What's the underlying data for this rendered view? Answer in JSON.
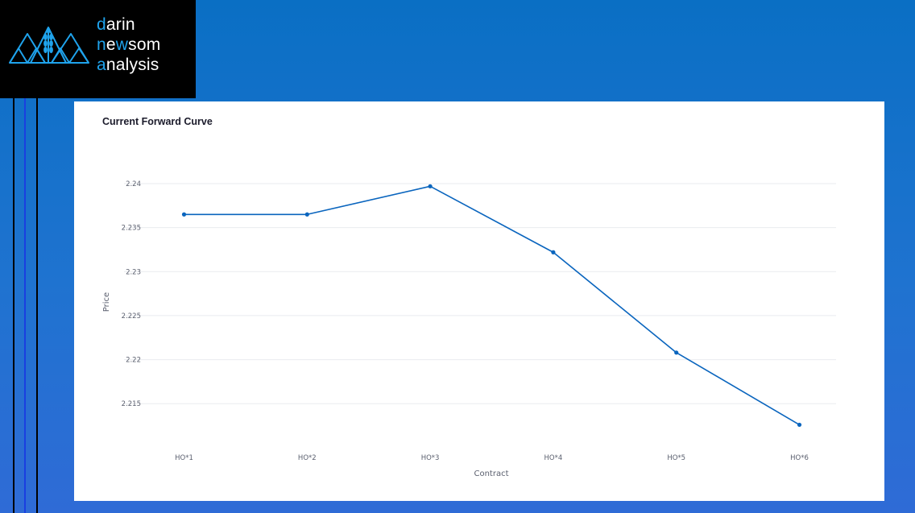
{
  "logo": {
    "line1_initial": "d",
    "line1_rest": "arin",
    "line2_initial": "n",
    "line2_mid1": "e",
    "line2_hl": "w",
    "line2_rest": "som",
    "line3_initial": "a",
    "line3_rest": "nalysis",
    "icon": "mountain-wheat-logo-icon"
  },
  "colors": {
    "background_top": "#0a6fc4",
    "background_bottom": "#2f6bd6",
    "logo_accent": "#1fa3ec",
    "series_line": "#0a65be"
  },
  "chart_data": {
    "type": "line",
    "title": "Current Forward Curve",
    "xlabel": "Contract",
    "ylabel": "Price",
    "categories": [
      "HO*1",
      "HO*2",
      "HO*3",
      "HO*4",
      "HO*5",
      "HO*6"
    ],
    "series": [
      {
        "values": [
          2.2365,
          2.2365,
          2.2397,
          2.2322,
          2.2208,
          2.2126
        ]
      }
    ],
    "yticks": [
      "2.215",
      "2.22",
      "2.225",
      "2.23",
      "2.235",
      "2.24"
    ],
    "ylim": [
      2.2109,
      2.2411
    ],
    "grid": true,
    "markers": true
  }
}
